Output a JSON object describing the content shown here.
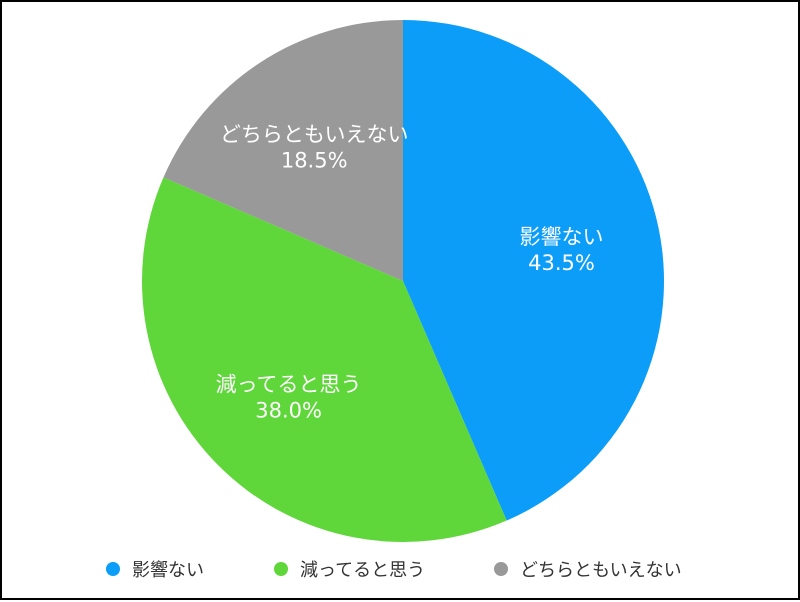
{
  "chart_data": {
    "type": "pie",
    "title": "",
    "start_angle_deg": 0,
    "direction": "clockwise",
    "legend_position": "bottom",
    "slices": [
      {
        "label": "影響ない",
        "value": 43.5,
        "value_label": "43.5%",
        "color": "#0b9df7"
      },
      {
        "label": "減ってると思う",
        "value": 38.0,
        "value_label": "38.0%",
        "color": "#5fd63a"
      },
      {
        "label": "どちらともいえない",
        "value": 18.5,
        "value_label": "18.5%",
        "color": "#999999"
      }
    ]
  }
}
